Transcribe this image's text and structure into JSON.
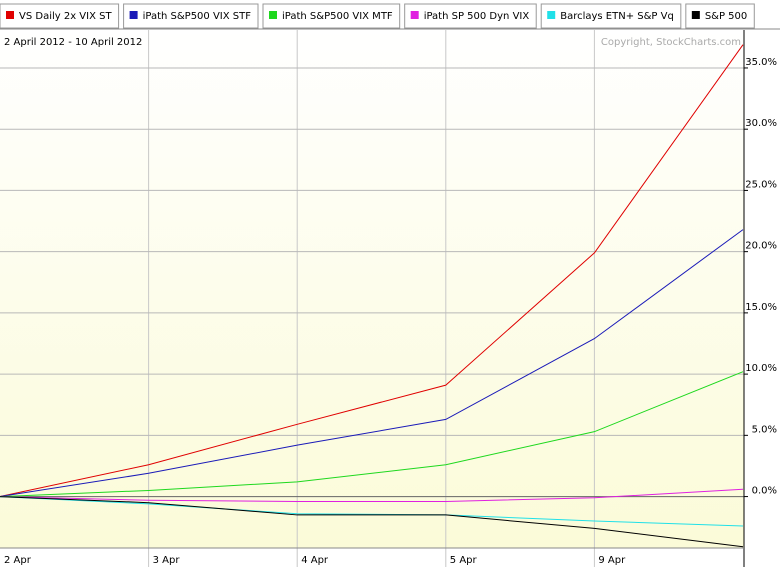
{
  "chart_data": {
    "type": "line",
    "subtitle": "2 April 2012 - 10 April 2012",
    "annotation": "Copyright, StockCharts.com",
    "categories": [
      "2 Apr",
      "3 Apr",
      "4 Apr",
      "5 Apr",
      "9 Apr",
      null
    ],
    "series": [
      {
        "name": "VS Daily 2x VIX ST",
        "color": "#e00000",
        "values": [
          0,
          2.6,
          5.9,
          9.1,
          19.9,
          36.9
        ]
      },
      {
        "name": "iPath S&P500 VIX STF",
        "color": "#1a1ab8",
        "values": [
          0,
          1.9,
          4.2,
          6.3,
          12.9,
          21.8
        ]
      },
      {
        "name": "iPath S&P500 VIX MTF",
        "color": "#1ed81e",
        "values": [
          0,
          0.5,
          1.2,
          2.6,
          5.3,
          10.2
        ]
      },
      {
        "name": "iPath SP 500 Dyn VIX",
        "color": "#e020e0",
        "values": [
          0,
          -0.3,
          -0.4,
          -0.4,
          -0.1,
          0.6
        ]
      },
      {
        "name": "Barclays ETN+ S&P Vq",
        "color": "#20e0e8",
        "values": [
          0,
          -0.6,
          -1.4,
          -1.5,
          -2.0,
          -2.4
        ]
      },
      {
        "name": "S&P 500",
        "color": "#000000",
        "values": [
          0,
          -0.5,
          -1.5,
          -1.5,
          -2.6,
          -4.1
        ]
      }
    ],
    "ylim": [
      -4.2,
      38.1
    ],
    "yticks": [
      {
        "value": 0,
        "label": "0.0%"
      },
      {
        "value": 5,
        "label": "5.0%"
      },
      {
        "value": 10,
        "label": "10.0%"
      },
      {
        "value": 15,
        "label": "15.0%"
      },
      {
        "value": 20,
        "label": "20.0%"
      },
      {
        "value": 25,
        "label": "25.0%"
      },
      {
        "value": 30,
        "label": "30.0%"
      },
      {
        "value": 35,
        "label": "35.0%"
      }
    ],
    "grid": true
  }
}
